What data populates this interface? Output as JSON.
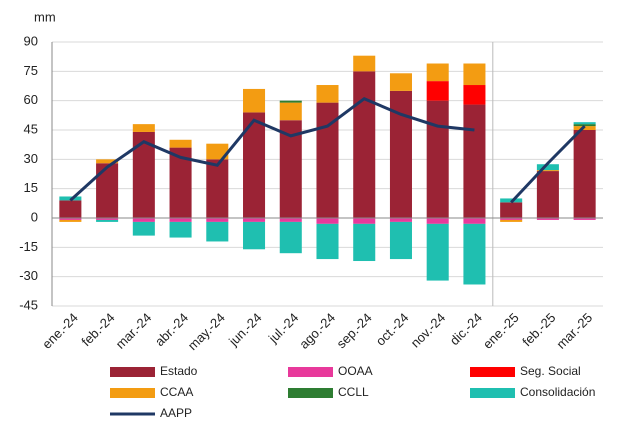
{
  "chart_data": {
    "type": "stacked_bar_line",
    "y_axis_label": "mm",
    "categories": [
      "ene.-24",
      "feb.-24",
      "mar.-24",
      "abr.-24",
      "may.-24",
      "jun.-24",
      "jul.-24",
      "ago.-24",
      "sep.-24",
      "oct.-24",
      "nov.-24",
      "dic.-24",
      "ene.-25",
      "feb.-25",
      "mar.-25"
    ],
    "series": [
      {
        "name": "Estado",
        "color": "#9b2335",
        "values": [
          9,
          28,
          44,
          36,
          30,
          54,
          50,
          59,
          75,
          65,
          60,
          58,
          8,
          24,
          45
        ]
      },
      {
        "name": "OOAA",
        "color": "#e8399b",
        "values": [
          -1,
          -1,
          -2,
          -2,
          -2,
          -2,
          -2,
          -3,
          -3,
          -2,
          -3,
          -3,
          -1,
          -1,
          -1
        ]
      },
      {
        "name": "Seg. Social",
        "color": "#ff0000",
        "values": [
          0,
          0,
          0,
          0,
          0,
          0,
          0,
          0,
          0,
          0,
          10,
          10,
          0,
          0,
          0
        ]
      },
      {
        "name": "CCAA",
        "color": "#f39c12",
        "values": [
          -1,
          2,
          4,
          4,
          8,
          12,
          9,
          9,
          8,
          9,
          9,
          11,
          -1,
          0.5,
          2
        ]
      },
      {
        "name": "CCLL",
        "color": "#2e7d32",
        "values": [
          0,
          0,
          0,
          0,
          0,
          0,
          1,
          0,
          0,
          0,
          0,
          0,
          0,
          0,
          1
        ]
      },
      {
        "name": "Consolidación",
        "color": "#1fbfb0",
        "values": [
          2,
          -1,
          -7,
          -8,
          -10,
          -14,
          -16,
          -18,
          -19,
          -19,
          -29,
          -31,
          2,
          3,
          1
        ]
      },
      {
        "name": "AAPP",
        "color": "#1f3864",
        "type": "line",
        "values": [
          9,
          26,
          39,
          31,
          27,
          50,
          42,
          47,
          61,
          53,
          47,
          45,
          8,
          28,
          47
        ]
      }
    ],
    "ylim": [
      -45,
      90
    ],
    "yticks": [
      -45,
      -30,
      -15,
      0,
      15,
      30,
      45,
      60,
      75,
      90
    ],
    "grid": true
  }
}
